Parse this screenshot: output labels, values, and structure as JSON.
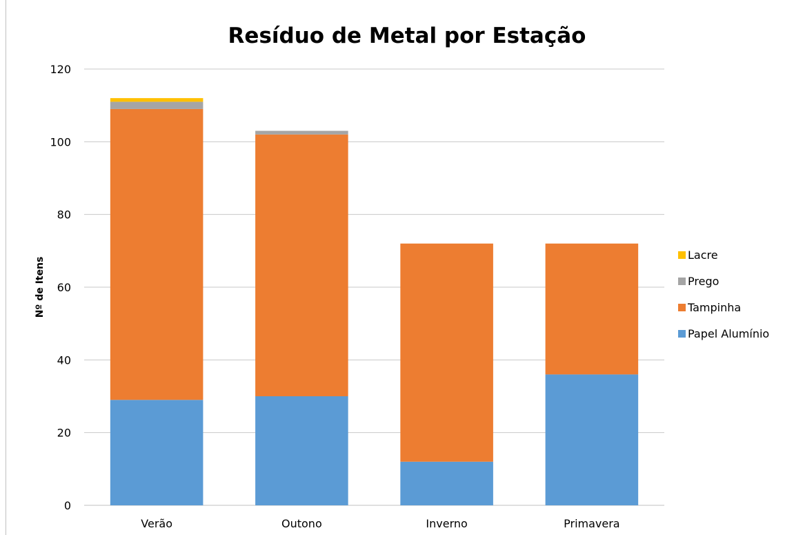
{
  "chart_data": {
    "type": "bar",
    "stacked": true,
    "title": "Resíduo de Metal por Estação",
    "xlabel": "",
    "ylabel": "Nº de Itens",
    "ylim": [
      0,
      120
    ],
    "yticks": [
      0,
      20,
      40,
      60,
      80,
      100,
      120
    ],
    "categories": [
      "Verão",
      "Outono",
      "Inverno",
      "Primavera"
    ],
    "series": [
      {
        "name": "Papel Alumínio",
        "color": "#5b9bd5",
        "values": [
          29,
          30,
          12,
          36
        ]
      },
      {
        "name": "Tampinha",
        "color": "#ed7d31",
        "values": [
          80,
          72,
          60,
          36
        ]
      },
      {
        "name": "Prego",
        "color": "#a5a5a5",
        "values": [
          2,
          1,
          0,
          0
        ]
      },
      {
        "name": "Lacre",
        "color": "#ffc000",
        "values": [
          1,
          0,
          0,
          0
        ]
      }
    ],
    "grid": true,
    "legend_position": "right"
  }
}
